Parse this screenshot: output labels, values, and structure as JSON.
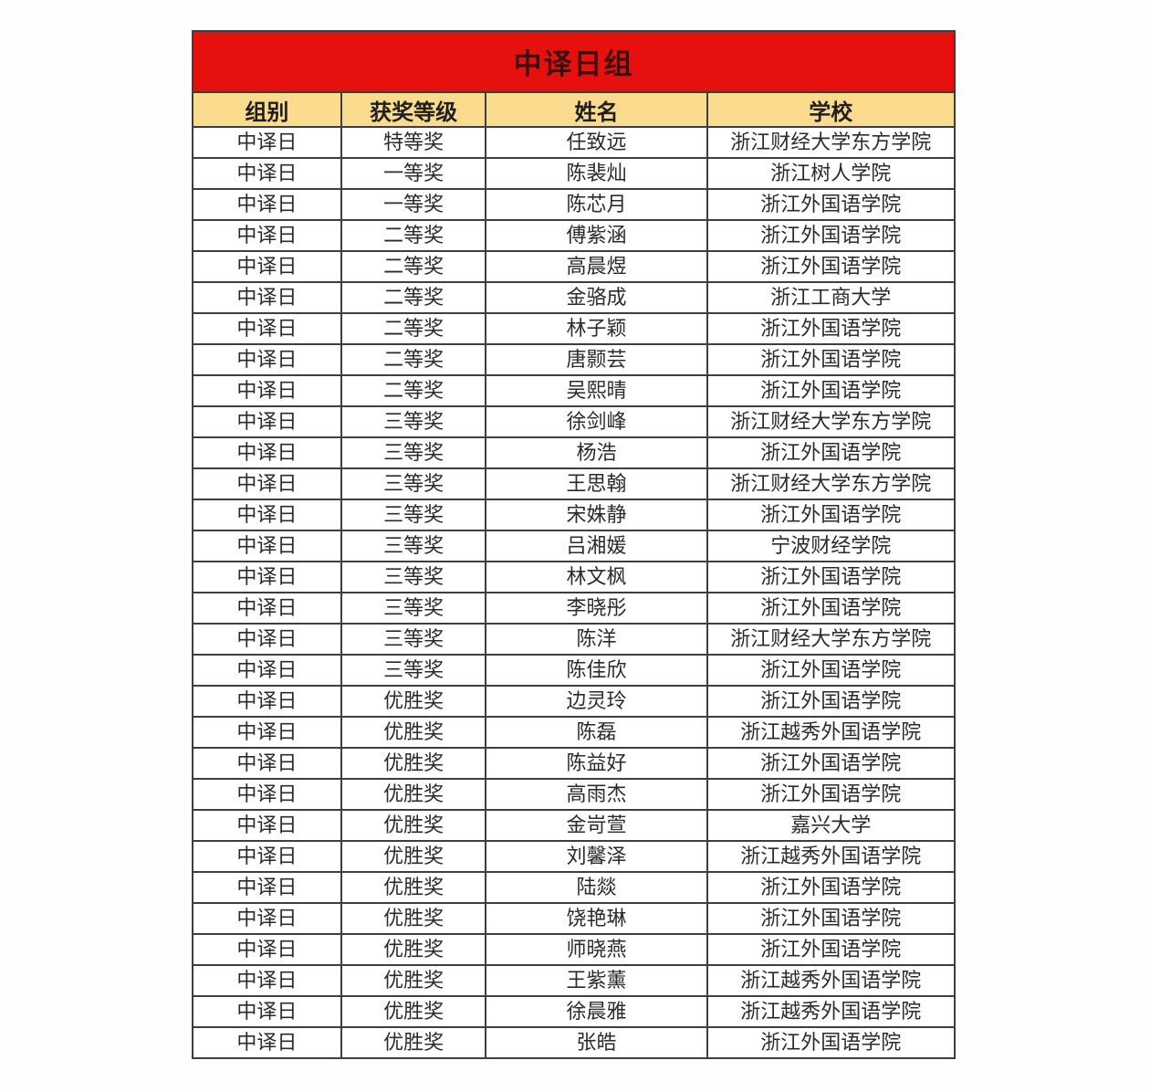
{
  "table": {
    "title": "中译日组",
    "columns": [
      "组别",
      "获奖等级",
      "姓名",
      "学校"
    ],
    "rows": [
      [
        "中译日",
        "特等奖",
        "任致远",
        "浙江财经大学东方学院"
      ],
      [
        "中译日",
        "一等奖",
        "陈裴灿",
        "浙江树人学院"
      ],
      [
        "中译日",
        "一等奖",
        "陈芯月",
        "浙江外国语学院"
      ],
      [
        "中译日",
        "二等奖",
        "傅紫涵",
        "浙江外国语学院"
      ],
      [
        "中译日",
        "二等奖",
        "高晨煜",
        "浙江外国语学院"
      ],
      [
        "中译日",
        "二等奖",
        "金骆成",
        "浙江工商大学"
      ],
      [
        "中译日",
        "二等奖",
        "林子颖",
        "浙江外国语学院"
      ],
      [
        "中译日",
        "二等奖",
        "唐颢芸",
        "浙江外国语学院"
      ],
      [
        "中译日",
        "二等奖",
        "吴熙晴",
        "浙江外国语学院"
      ],
      [
        "中译日",
        "三等奖",
        "徐剑峰",
        "浙江财经大学东方学院"
      ],
      [
        "中译日",
        "三等奖",
        "杨浩",
        "浙江外国语学院"
      ],
      [
        "中译日",
        "三等奖",
        "王思翰",
        "浙江财经大学东方学院"
      ],
      [
        "中译日",
        "三等奖",
        "宋姝静",
        "浙江外国语学院"
      ],
      [
        "中译日",
        "三等奖",
        "吕湘媛",
        "宁波财经学院"
      ],
      [
        "中译日",
        "三等奖",
        "林文枫",
        "浙江外国语学院"
      ],
      [
        "中译日",
        "三等奖",
        "李晓彤",
        "浙江外国语学院"
      ],
      [
        "中译日",
        "三等奖",
        "陈洋",
        "浙江财经大学东方学院"
      ],
      [
        "中译日",
        "三等奖",
        "陈佳欣",
        "浙江外国语学院"
      ],
      [
        "中译日",
        "优胜奖",
        "边灵玲",
        "浙江外国语学院"
      ],
      [
        "中译日",
        "优胜奖",
        "陈磊",
        "浙江越秀外国语学院"
      ],
      [
        "中译日",
        "优胜奖",
        "陈益好",
        "浙江外国语学院"
      ],
      [
        "中译日",
        "优胜奖",
        "高雨杰",
        "浙江外国语学院"
      ],
      [
        "中译日",
        "优胜奖",
        "金岢萱",
        "嘉兴大学"
      ],
      [
        "中译日",
        "优胜奖",
        "刘馨泽",
        "浙江越秀外国语学院"
      ],
      [
        "中译日",
        "优胜奖",
        "陆燚",
        "浙江外国语学院"
      ],
      [
        "中译日",
        "优胜奖",
        "饶艳琳",
        "浙江外国语学院"
      ],
      [
        "中译日",
        "优胜奖",
        "师晓燕",
        "浙江外国语学院"
      ],
      [
        "中译日",
        "优胜奖",
        "王紫薰",
        "浙江越秀外国语学院"
      ],
      [
        "中译日",
        "优胜奖",
        "徐晨雅",
        "浙江越秀外国语学院"
      ],
      [
        "中译日",
        "优胜奖",
        "张皓",
        "浙江外国语学院"
      ]
    ]
  },
  "colors": {
    "title_bg": "#e6100e",
    "title_text": "#420d08",
    "header_bg": "#fbdc8e",
    "header_text": "#1f1f1f",
    "body_text": "#2b2b2b",
    "border": "#3e3e3e",
    "page_bg": "#fefefe"
  }
}
